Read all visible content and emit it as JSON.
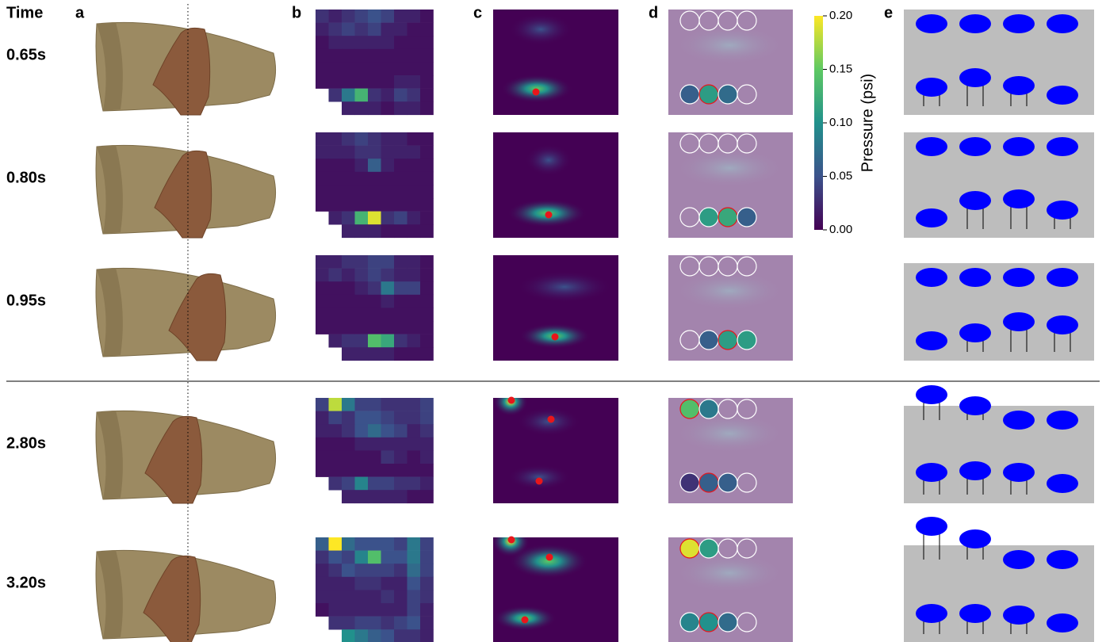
{
  "time_header": "Time",
  "panel_labels": [
    "a",
    "b",
    "c",
    "d",
    "e"
  ],
  "colorbar": {
    "label": "Pressure (psi)",
    "lim": [
      0,
      0.2
    ],
    "ticks": [
      {
        "value": 0.2,
        "label": "0.20"
      },
      {
        "value": 0.15,
        "label": "0.15"
      },
      {
        "value": 0.1,
        "label": "0.10"
      },
      {
        "value": 0.05,
        "label": "0.05"
      },
      {
        "value": 0,
        "label": "0.00"
      }
    ]
  },
  "frames": [
    {
      "time": "0.65s",
      "pressure_grid": [
        [
          0.03,
          0.02,
          0.03,
          0.04,
          0.05,
          0.04,
          0.02,
          0.02,
          0.01
        ],
        [
          0.02,
          0.03,
          0.04,
          0.03,
          0.04,
          0.02,
          0.02,
          0.01,
          0.01
        ],
        [
          0.01,
          0.02,
          0.02,
          0.02,
          0.02,
          0.02,
          0.01,
          0.01,
          0.01
        ],
        [
          0.01,
          0.01,
          0.01,
          0.01,
          0.01,
          0.01,
          0.01,
          0.01,
          0.01
        ],
        [
          0.01,
          0.01,
          0.01,
          0.01,
          0.01,
          0.01,
          0.01,
          0.01,
          0.01
        ],
        [
          0.01,
          0.01,
          0.01,
          0.01,
          0.01,
          0.01,
          0.02,
          0.02,
          0.01
        ],
        [
          null,
          0.03,
          0.08,
          0.13,
          0.03,
          0.02,
          0.04,
          0.03,
          0.01
        ],
        [
          null,
          null,
          0.02,
          0.02,
          0.02,
          0.01,
          0.02,
          0.02,
          0.01
        ]
      ],
      "sensors": [
        null,
        null,
        null,
        null,
        0.06,
        0.11,
        0.07,
        null
      ],
      "outlined": [
        5
      ]
    },
    {
      "time": "0.80s",
      "pressure_grid": [
        [
          0.02,
          0.02,
          0.03,
          0.04,
          0.03,
          0.02,
          0.02,
          0.01,
          0.01
        ],
        [
          0.02,
          0.02,
          0.02,
          0.03,
          0.03,
          0.02,
          0.02,
          0.02,
          0.01
        ],
        [
          0.01,
          0.01,
          0.01,
          0.02,
          0.06,
          0.02,
          0.01,
          0.01,
          0.01
        ],
        [
          0.01,
          0.01,
          0.01,
          0.01,
          0.01,
          0.01,
          0.01,
          0.01,
          0.01
        ],
        [
          0.01,
          0.01,
          0.01,
          0.01,
          0.01,
          0.01,
          0.01,
          0.01,
          0.01
        ],
        [
          0.01,
          0.01,
          0.01,
          0.01,
          0.01,
          0.01,
          0.01,
          0.01,
          0.01
        ],
        [
          null,
          0.02,
          0.03,
          0.13,
          0.19,
          0.03,
          0.04,
          0.02,
          0.01
        ],
        [
          null,
          null,
          0.02,
          0.02,
          0.02,
          0.01,
          0.01,
          0.01,
          0.01
        ]
      ],
      "sensors": [
        null,
        null,
        null,
        null,
        null,
        0.11,
        0.12,
        0.06
      ],
      "outlined": [
        6
      ]
    },
    {
      "time": "0.95s",
      "pressure_grid": [
        [
          0.02,
          0.02,
          0.03,
          0.03,
          0.04,
          0.04,
          0.02,
          0.02,
          0.01
        ],
        [
          0.02,
          0.03,
          0.02,
          0.03,
          0.04,
          0.03,
          0.02,
          0.02,
          0.01
        ],
        [
          0.01,
          0.01,
          0.01,
          0.02,
          0.03,
          0.08,
          0.04,
          0.04,
          0.01
        ],
        [
          0.01,
          0.01,
          0.01,
          0.01,
          0.01,
          0.02,
          0.01,
          0.01,
          0.01
        ],
        [
          0.01,
          0.01,
          0.01,
          0.01,
          0.01,
          0.01,
          0.01,
          0.01,
          0.01
        ],
        [
          0.01,
          0.01,
          0.01,
          0.01,
          0.01,
          0.01,
          0.01,
          0.01,
          0.01
        ],
        [
          null,
          0.02,
          0.03,
          0.03,
          0.14,
          0.12,
          0.03,
          0.02,
          0.01
        ],
        [
          null,
          null,
          0.02,
          0.02,
          0.02,
          0.02,
          0.01,
          0.01,
          0.01
        ]
      ],
      "sensors": [
        null,
        null,
        null,
        null,
        null,
        0.06,
        0.11,
        0.11
      ],
      "outlined": [
        6
      ]
    },
    {
      "time": "2.80s",
      "pressure_grid": [
        [
          0.04,
          0.18,
          0.08,
          0.04,
          0.04,
          0.03,
          0.03,
          0.03,
          0.04
        ],
        [
          0.02,
          0.04,
          0.03,
          0.05,
          0.05,
          0.04,
          0.03,
          0.03,
          0.04
        ],
        [
          0.02,
          0.02,
          0.03,
          0.05,
          0.07,
          0.05,
          0.04,
          0.02,
          0.03
        ],
        [
          0.01,
          0.01,
          0.01,
          0.02,
          0.02,
          0.02,
          0.02,
          0.02,
          0.02
        ],
        [
          0.01,
          0.01,
          0.01,
          0.01,
          0.01,
          0.03,
          0.02,
          0.01,
          0.02
        ],
        [
          0.01,
          0.01,
          0.01,
          0.01,
          0.01,
          0.01,
          0.01,
          0.01,
          0.01
        ],
        [
          null,
          0.03,
          0.04,
          0.09,
          0.04,
          0.04,
          0.03,
          0.03,
          0.02
        ],
        [
          null,
          null,
          0.02,
          0.02,
          0.02,
          0.02,
          0.02,
          0.01,
          0.01
        ]
      ],
      "sensors": [
        0.14,
        0.08,
        null,
        null,
        0.03,
        0.06,
        0.06,
        null
      ],
      "outlined": [
        0,
        5
      ]
    },
    {
      "time": "3.20s",
      "pressure_grid": [
        [
          0.06,
          0.2,
          0.07,
          0.05,
          0.05,
          0.05,
          0.04,
          0.08,
          0.04
        ],
        [
          0.03,
          0.05,
          0.04,
          0.09,
          0.14,
          0.05,
          0.05,
          0.08,
          0.04
        ],
        [
          0.02,
          0.03,
          0.05,
          0.04,
          0.04,
          0.04,
          0.03,
          0.07,
          0.04
        ],
        [
          0.02,
          0.02,
          0.02,
          0.03,
          0.03,
          0.02,
          0.02,
          0.05,
          0.03
        ],
        [
          0.02,
          0.02,
          0.02,
          0.02,
          0.02,
          0.03,
          0.02,
          0.04,
          0.03
        ],
        [
          0.01,
          0.02,
          0.02,
          0.02,
          0.02,
          0.02,
          0.02,
          0.04,
          0.02
        ],
        [
          null,
          0.03,
          0.03,
          0.04,
          0.04,
          0.03,
          0.04,
          0.05,
          0.02
        ],
        [
          null,
          null,
          0.1,
          0.08,
          0.06,
          0.05,
          0.03,
          0.03,
          0.02
        ]
      ],
      "sensors": [
        0.19,
        0.11,
        null,
        null,
        0.09,
        0.1,
        0.07,
        null
      ],
      "outlined": [
        0,
        5
      ]
    }
  ]
}
